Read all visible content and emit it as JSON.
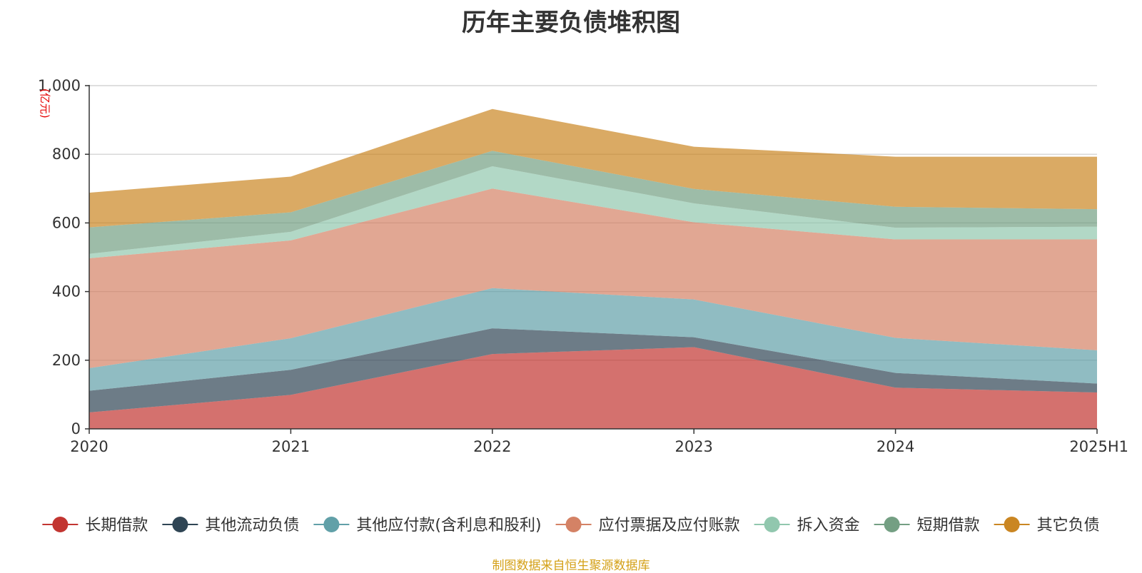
{
  "chart_data": {
    "type": "area",
    "stacked": true,
    "title": "历年主要负债堆积图",
    "y_unit_label": "(亿元)",
    "categories": [
      "2020",
      "2021",
      "2022",
      "2023",
      "2024",
      "2025H1"
    ],
    "ylim": [
      0,
      1000
    ],
    "yticks": [
      0,
      200,
      400,
      600,
      800,
      1000
    ],
    "ytick_labels": [
      "0",
      "200",
      "400",
      "600",
      "800",
      "1,000"
    ],
    "grid": true,
    "legend_position": "bottom",
    "series": [
      {
        "name": "长期借款",
        "color": "#c23531",
        "values": [
          48,
          99,
          218,
          238,
          120,
          106
        ]
      },
      {
        "name": "其他流动负债",
        "color": "#2f4554",
        "values": [
          63,
          73,
          75,
          29,
          43,
          26
        ]
      },
      {
        "name": "其他应付款(含利息和股利)",
        "color": "#61a0a8",
        "values": [
          66,
          92,
          117,
          110,
          102,
          97
        ]
      },
      {
        "name": "应付票据及应付账款",
        "color": "#d48265",
        "values": [
          320,
          285,
          290,
          225,
          287,
          323
        ]
      },
      {
        "name": "拆入资金",
        "color": "#91c7ae",
        "values": [
          13,
          25,
          65,
          55,
          34,
          37
        ]
      },
      {
        "name": "短期借款",
        "color": "#749f83",
        "values": [
          77,
          57,
          45,
          42,
          61,
          51
        ]
      },
      {
        "name": "其它负债",
        "color": "#ca8622",
        "values": [
          101,
          104,
          122,
          123,
          146,
          153
        ]
      }
    ]
  },
  "source_note": "制图数据来自恒生聚源数据库"
}
